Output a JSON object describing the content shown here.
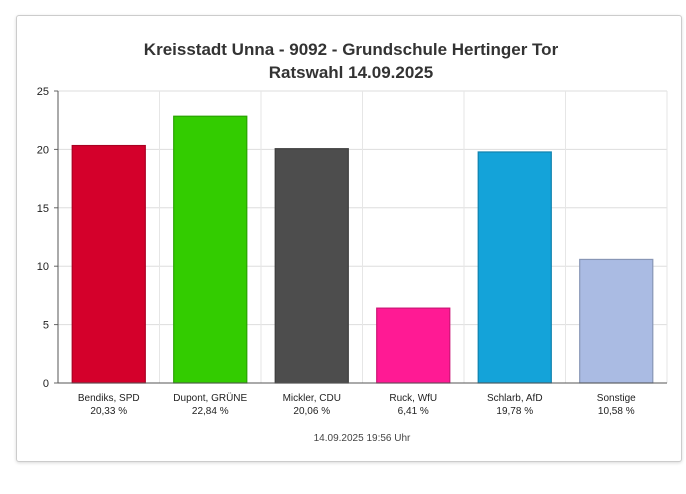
{
  "chart_data": {
    "type": "bar",
    "title_lines": [
      "Kreisstadt Unna - 9092 - Grundschule Hertinger Tor",
      "Ratswahl 14.09.2025"
    ],
    "categories": [
      "Bendiks, SPD",
      "Dupont, GRÜNE",
      "Mickler, CDU",
      "Ruck, WfU",
      "Schlarb, AfD",
      "Sonstige"
    ],
    "value_labels": [
      "20,33 %",
      "22,84 %",
      "20,06 %",
      "6,41 %",
      "19,78 %",
      "10,58 %"
    ],
    "values": [
      20.33,
      22.84,
      20.06,
      6.41,
      19.78,
      10.58
    ],
    "colors": [
      "#d4002b",
      "#33cc00",
      "#4d4d4d",
      "#ff1a94",
      "#14a3d9",
      "#aabbe3"
    ],
    "ylim": [
      0,
      25
    ],
    "yticks": [
      0,
      5,
      10,
      15,
      20,
      25
    ],
    "grid": true,
    "timestamp": "14.09.2025 19:56 Uhr"
  }
}
